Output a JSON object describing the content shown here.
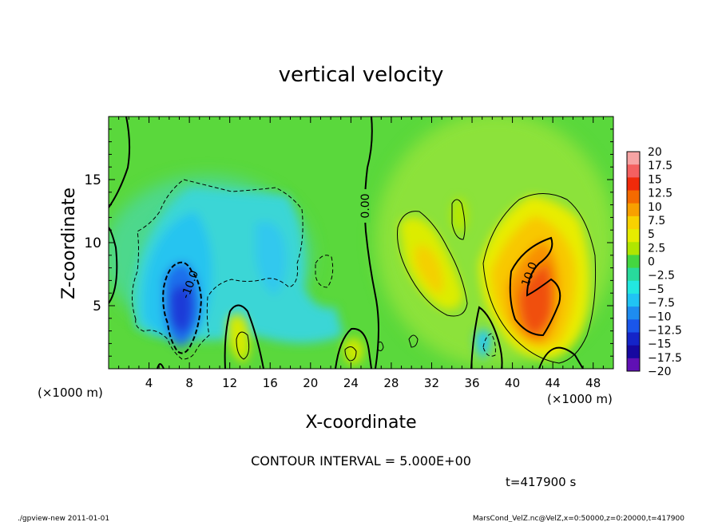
{
  "chart_data": {
    "type": "heatmap",
    "title": "vertical velocity",
    "xlabel": "X-coordinate",
    "ylabel": "Z-coordinate",
    "x_unit": "(×1000 m)",
    "x_ticks": [
      4,
      8,
      12,
      16,
      20,
      24,
      28,
      32,
      36,
      40,
      44,
      48
    ],
    "y_ticks": [
      5,
      10,
      15
    ],
    "xlim": [
      0,
      50
    ],
    "ylim": [
      0,
      20
    ],
    "contour_interval_text": "CONTOUR INTERVAL = 5.000E+00",
    "contour_labels": [
      "0.00",
      "-10.0",
      "10.0"
    ],
    "time_text": "t=417900 s",
    "colorbar": {
      "labels": [
        "20",
        "17.5",
        "15",
        "12.5",
        "10",
        "7.5",
        "5",
        "2.5",
        "0",
        "−2.5",
        "−5",
        "−7.5",
        "−10",
        "−12.5",
        "−15",
        "−17.5",
        "−20"
      ],
      "colors": [
        "#f7a4a4",
        "#f46060",
        "#f02a0a",
        "#f46a00",
        "#f8a000",
        "#f8d200",
        "#e6ec00",
        "#b0e600",
        "#44d640",
        "#28da9c",
        "#22e8e0",
        "#20c4f4",
        "#1e8cf0",
        "#1a56ea",
        "#1424c8",
        "#1608a0",
        "#6010b4"
      ]
    },
    "field_features": [
      {
        "type": "down",
        "x": 7.8,
        "z": 5.5,
        "w": -14
      },
      {
        "type": "down",
        "x": 15.5,
        "z": 9,
        "w": -5
      },
      {
        "type": "up",
        "x": 42.5,
        "z": 6.5,
        "w": 13
      },
      {
        "type": "up",
        "x": 31.5,
        "z": 8,
        "w": 6
      },
      {
        "type": "up",
        "x": 13.5,
        "z": 2,
        "w": 4
      },
      {
        "type": "up",
        "x": 23.5,
        "z": 1.5,
        "w": 3
      },
      {
        "type": "down",
        "x": 37.8,
        "z": 2,
        "w": -5
      }
    ]
  },
  "footer": {
    "left": "./gpview-new  2011-01-01",
    "right": "MarsCond_VelZ.nc@VelZ,x=0:50000,z=0:20000,t=417900"
  }
}
